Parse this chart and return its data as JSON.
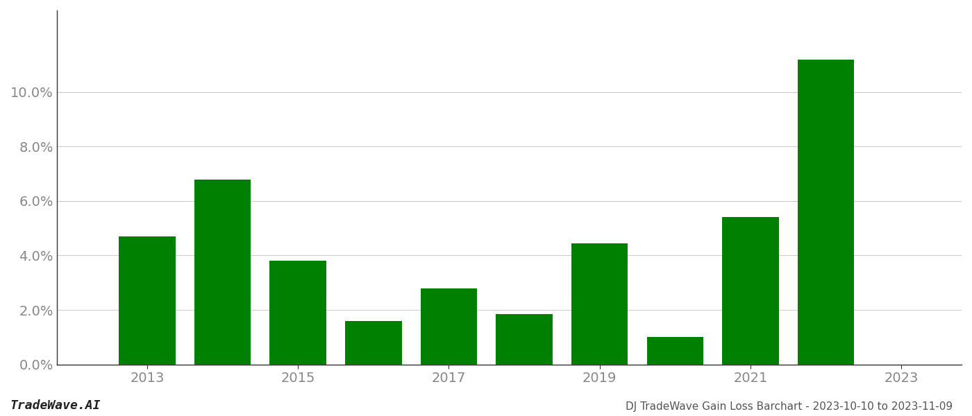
{
  "years": [
    2013,
    2014,
    2015,
    2016,
    2017,
    2018,
    2019,
    2020,
    2021,
    2022
  ],
  "values": [
    0.047,
    0.068,
    0.038,
    0.016,
    0.028,
    0.0185,
    0.0445,
    0.01,
    0.054,
    0.112
  ],
  "bar_color": "#008000",
  "background_color": "#ffffff",
  "grid_color": "#cccccc",
  "title_text": "DJ TradeWave Gain Loss Barchart - 2023-10-10 to 2023-11-09",
  "watermark_text": "TradeWave.AI",
  "ylim_min": 0.0,
  "ylim_max": 0.13,
  "yticks": [
    0.0,
    0.02,
    0.04,
    0.06,
    0.08,
    0.1
  ],
  "xticks": [
    2013,
    2015,
    2017,
    2019,
    2021,
    2023
  ],
  "xlim_min": 2011.8,
  "xlim_max": 2023.8,
  "bar_width": 0.75,
  "title_fontsize": 11,
  "tick_fontsize": 14,
  "watermark_fontsize": 13,
  "axis_color": "#888888",
  "spine_color": "#333333",
  "text_color": "#555555"
}
